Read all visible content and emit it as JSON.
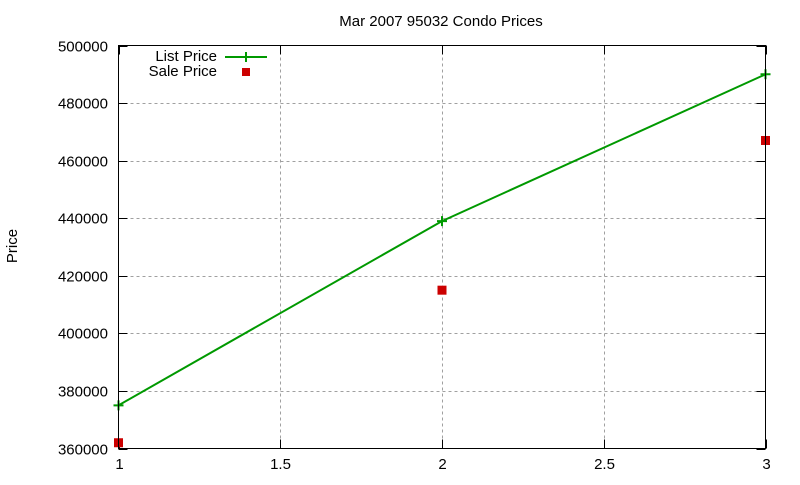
{
  "chart_data": {
    "type": "line",
    "title": "Mar 2007 95032 Condo Prices",
    "xlabel": "",
    "ylabel": "Price",
    "xlim": [
      1,
      3
    ],
    "ylim": [
      360000,
      500000
    ],
    "grid": true,
    "legend_position": "top-left",
    "x_ticks": [
      "1",
      "1.5",
      "2",
      "2.5",
      "3"
    ],
    "y_ticks": [
      "360000",
      "380000",
      "400000",
      "420000",
      "440000",
      "460000",
      "480000",
      "500000"
    ],
    "x": [
      1,
      2,
      3
    ],
    "series": [
      {
        "name": "List Price",
        "style": "linespoints",
        "marker": "plus",
        "color": "#009900",
        "values": [
          375000,
          439000,
          490000
        ]
      },
      {
        "name": "Sale Price",
        "style": "points",
        "marker": "square",
        "color": "#cc0000",
        "values": [
          362000,
          415000,
          467000
        ]
      }
    ]
  },
  "colors": {
    "list": "#009900",
    "sale": "#cc0000",
    "grid": "#a0a0a0",
    "axis": "#000000"
  }
}
